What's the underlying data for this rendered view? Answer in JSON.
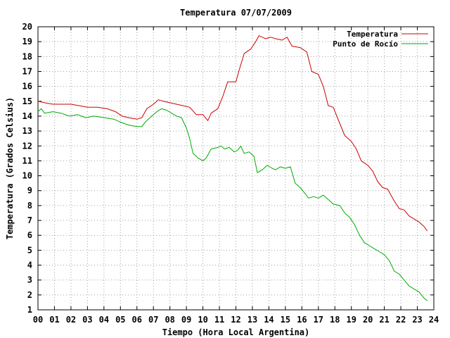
{
  "chart_data": {
    "type": "line",
    "title": "Temperatura 07/07/2009",
    "xlabel": "Tiempo (Hora Local Argentina)",
    "ylabel": "Temperatura (Grados Celsius)",
    "xlim": [
      0,
      24
    ],
    "ylim": [
      1,
      20
    ],
    "grid": true,
    "legend_position": "top-right",
    "x_tick_labels": [
      "00",
      "01",
      "02",
      "03",
      "04",
      "05",
      "06",
      "07",
      "08",
      "09",
      "10",
      "11",
      "12",
      "13",
      "14",
      "15",
      "16",
      "17",
      "18",
      "19",
      "20",
      "21",
      "22",
      "23",
      "24"
    ],
    "y_tick_labels": [
      "1",
      "2",
      "3",
      "4",
      "5",
      "6",
      "7",
      "8",
      "9",
      "10",
      "11",
      "12",
      "13",
      "14",
      "15",
      "16",
      "17",
      "18",
      "19",
      "20"
    ],
    "series": [
      {
        "name": "Temperatura",
        "color": "#cc0000",
        "x": [
          0,
          0.4,
          0.9,
          1.4,
          2.0,
          2.5,
          3.0,
          3.6,
          4.2,
          4.7,
          5.1,
          5.5,
          6.0,
          6.3,
          6.6,
          7.0,
          7.3,
          7.6,
          8.0,
          8.4,
          8.8,
          9.2,
          9.6,
          10.0,
          10.3,
          10.5,
          10.9,
          11.2,
          11.5,
          12.0,
          12.2,
          12.5,
          12.9,
          13.2,
          13.4,
          13.8,
          14.1,
          14.4,
          14.8,
          15.1,
          15.4,
          15.9,
          16.3,
          16.6,
          17.0,
          17.3,
          17.6,
          17.9,
          18.3,
          18.6,
          19.0,
          19.3,
          19.6,
          20.0,
          20.3,
          20.6,
          20.9,
          21.2,
          21.6,
          21.9,
          22.2,
          22.5,
          22.8,
          23.1,
          23.4,
          23.6
        ],
        "y": [
          15.0,
          14.9,
          14.8,
          14.8,
          14.8,
          14.7,
          14.6,
          14.6,
          14.5,
          14.3,
          14.0,
          13.9,
          13.8,
          13.9,
          14.5,
          14.8,
          15.1,
          15.0,
          14.9,
          14.8,
          14.7,
          14.6,
          14.1,
          14.1,
          13.7,
          14.2,
          14.5,
          15.3,
          16.3,
          16.3,
          17.1,
          18.2,
          18.5,
          19.0,
          19.4,
          19.2,
          19.3,
          19.2,
          19.1,
          19.3,
          18.7,
          18.6,
          18.3,
          17.0,
          16.8,
          16.0,
          14.7,
          14.6,
          13.5,
          12.7,
          12.3,
          11.8,
          11.0,
          10.7,
          10.3,
          9.6,
          9.2,
          9.1,
          8.3,
          7.8,
          7.7,
          7.3,
          7.1,
          6.9,
          6.6,
          6.3
        ]
      },
      {
        "name": "Punto de Rocío",
        "color": "#00aa00",
        "x": [
          0,
          0.2,
          0.4,
          0.9,
          1.4,
          1.9,
          2.4,
          2.9,
          3.4,
          4.0,
          4.6,
          5.0,
          5.5,
          6.0,
          6.3,
          6.5,
          6.9,
          7.2,
          7.5,
          7.8,
          8.1,
          8.4,
          8.7,
          9.0,
          9.2,
          9.4,
          9.7,
          10.0,
          10.2,
          10.5,
          10.9,
          11.1,
          11.3,
          11.6,
          11.9,
          12.1,
          12.3,
          12.5,
          12.8,
          13.1,
          13.3,
          13.6,
          13.9,
          14.2,
          14.4,
          14.7,
          15.0,
          15.3,
          15.6,
          15.9,
          16.2,
          16.4,
          16.7,
          17.0,
          17.3,
          17.6,
          17.9,
          18.3,
          18.6,
          18.9,
          19.2,
          19.5,
          19.8,
          20.1,
          20.4,
          20.7,
          21.0,
          21.3,
          21.6,
          21.9,
          22.2,
          22.5,
          22.8,
          23.1,
          23.4,
          23.6
        ],
        "y": [
          14.3,
          14.5,
          14.2,
          14.3,
          14.2,
          14.0,
          14.1,
          13.9,
          14.0,
          13.9,
          13.8,
          13.6,
          13.4,
          13.3,
          13.3,
          13.6,
          14.0,
          14.3,
          14.5,
          14.4,
          14.2,
          14.0,
          13.9,
          13.2,
          12.5,
          11.5,
          11.2,
          11.0,
          11.2,
          11.8,
          11.9,
          12.0,
          11.8,
          11.9,
          11.6,
          11.7,
          12.0,
          11.5,
          11.6,
          11.3,
          10.2,
          10.4,
          10.7,
          10.5,
          10.4,
          10.6,
          10.5,
          10.6,
          9.5,
          9.2,
          8.8,
          8.5,
          8.6,
          8.5,
          8.7,
          8.4,
          8.1,
          8.0,
          7.5,
          7.2,
          6.7,
          6.0,
          5.5,
          5.3,
          5.1,
          4.9,
          4.7,
          4.3,
          3.6,
          3.4,
          3.0,
          2.6,
          2.4,
          2.2,
          1.8,
          1.6
        ]
      }
    ]
  }
}
